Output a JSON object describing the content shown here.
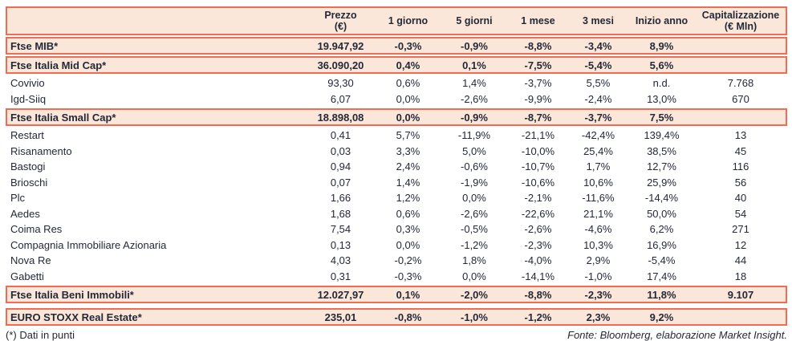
{
  "table": {
    "columns": [
      {
        "key": "name",
        "label": "",
        "sub": ""
      },
      {
        "key": "prezzo",
        "label": "Prezzo",
        "sub": "(€)"
      },
      {
        "key": "g1",
        "label": "1 giorno",
        "sub": ""
      },
      {
        "key": "g5",
        "label": "5 giorni",
        "sub": ""
      },
      {
        "key": "m1",
        "label": "1 mese",
        "sub": ""
      },
      {
        "key": "m3",
        "label": "3 mesi",
        "sub": ""
      },
      {
        "key": "ytd",
        "label": "Inizio anno",
        "sub": ""
      },
      {
        "key": "cap",
        "label": "Capitalizzazione",
        "sub": "(€ Mln)"
      }
    ],
    "rows": [
      {
        "type": "index",
        "name": "Ftse MIB*",
        "prezzo": "19.947,92",
        "g1": "-0,3%",
        "g5": "-0,9%",
        "m1": "-8,8%",
        "m3": "-3,4%",
        "ytd": "8,9%",
        "cap": ""
      },
      {
        "type": "index",
        "name": "Ftse Italia Mid Cap*",
        "prezzo": "36.090,20",
        "g1": "0,4%",
        "g5": "0,1%",
        "m1": "-7,5%",
        "m3": "-5,4%",
        "ytd": "5,6%",
        "cap": ""
      },
      {
        "type": "stock",
        "name": "Covivio",
        "prezzo": "93,30",
        "g1": "0,6%",
        "g5": "1,4%",
        "m1": "-3,7%",
        "m3": "5,5%",
        "ytd": "n.d.",
        "cap": "7.768"
      },
      {
        "type": "stock",
        "name": "Igd-Siiq",
        "prezzo": "6,07",
        "g1": "0,0%",
        "g5": "-2,6%",
        "m1": "-9,9%",
        "m3": "-2,4%",
        "ytd": "13,0%",
        "cap": "670"
      },
      {
        "type": "index",
        "name": "Ftse Italia Small Cap*",
        "prezzo": "18.898,08",
        "g1": "0,0%",
        "g5": "-0,9%",
        "m1": "-8,7%",
        "m3": "-3,7%",
        "ytd": "7,5%",
        "cap": ""
      },
      {
        "type": "stock",
        "name": "Restart",
        "prezzo": "0,41",
        "g1": "5,7%",
        "g5": "-11,9%",
        "m1": "-21,1%",
        "m3": "-42,4%",
        "ytd": "139,4%",
        "cap": "13"
      },
      {
        "type": "stock",
        "name": "Risanamento",
        "prezzo": "0,03",
        "g1": "3,3%",
        "g5": "5,0%",
        "m1": "-10,0%",
        "m3": "25,4%",
        "ytd": "38,5%",
        "cap": "45"
      },
      {
        "type": "stock",
        "name": "Bastogi",
        "prezzo": "0,94",
        "g1": "2,4%",
        "g5": "-0,6%",
        "m1": "-10,7%",
        "m3": "1,7%",
        "ytd": "12,7%",
        "cap": "116"
      },
      {
        "type": "stock",
        "name": "Brioschi",
        "prezzo": "0,07",
        "g1": "1,4%",
        "g5": "-1,9%",
        "m1": "-10,6%",
        "m3": "10,6%",
        "ytd": "25,9%",
        "cap": "56"
      },
      {
        "type": "stock",
        "name": "Plc",
        "prezzo": "1,66",
        "g1": "1,2%",
        "g5": "0,0%",
        "m1": "-2,1%",
        "m3": "-11,6%",
        "ytd": "-14,4%",
        "cap": "40"
      },
      {
        "type": "stock",
        "name": "Aedes",
        "prezzo": "1,68",
        "g1": "0,6%",
        "g5": "-2,6%",
        "m1": "-22,6%",
        "m3": "21,1%",
        "ytd": "50,0%",
        "cap": "54"
      },
      {
        "type": "stock",
        "name": "Coima Res",
        "prezzo": "7,54",
        "g1": "0,3%",
        "g5": "-0,5%",
        "m1": "-2,6%",
        "m3": "-4,6%",
        "ytd": "6,2%",
        "cap": "271"
      },
      {
        "type": "stock",
        "name": "Compagnia Immobiliare Azionaria",
        "prezzo": "0,13",
        "g1": "0,0%",
        "g5": "-1,2%",
        "m1": "-2,3%",
        "m3": "10,3%",
        "ytd": "16,9%",
        "cap": "12"
      },
      {
        "type": "stock",
        "name": "Nova Re",
        "prezzo": "4,03",
        "g1": "-0,2%",
        "g5": "1,8%",
        "m1": "-4,0%",
        "m3": "2,9%",
        "ytd": "-5,4%",
        "cap": "44"
      },
      {
        "type": "stock",
        "name": "Gabetti",
        "prezzo": "0,31",
        "g1": "-0,3%",
        "g5": "0,0%",
        "m1": "-14,1%",
        "m3": "-1,0%",
        "ytd": "17,4%",
        "cap": "18"
      },
      {
        "type": "index",
        "name": "Ftse Italia Beni Immobili*",
        "prezzo": "12.027,97",
        "g1": "0,1%",
        "g5": "-2,0%",
        "m1": "-8,8%",
        "m3": "-2,3%",
        "ytd": "11,8%",
        "cap": "9.107"
      },
      {
        "type": "index",
        "gap_before": true,
        "name": "EURO STOXX Real Estate*",
        "prezzo": "235,01",
        "g1": "-0,8%",
        "g5": "-1,0%",
        "m1": "-1,2%",
        "m3": "2,3%",
        "ytd": "9,2%",
        "cap": ""
      }
    ]
  },
  "footer": {
    "note": "(*) Dati in punti",
    "source": "Fonte: Bloomberg, elaborazione Market Insight."
  },
  "colors": {
    "accent_border": "#F26B52",
    "row_highlight": "#FBE7D9",
    "text": "#242938"
  }
}
